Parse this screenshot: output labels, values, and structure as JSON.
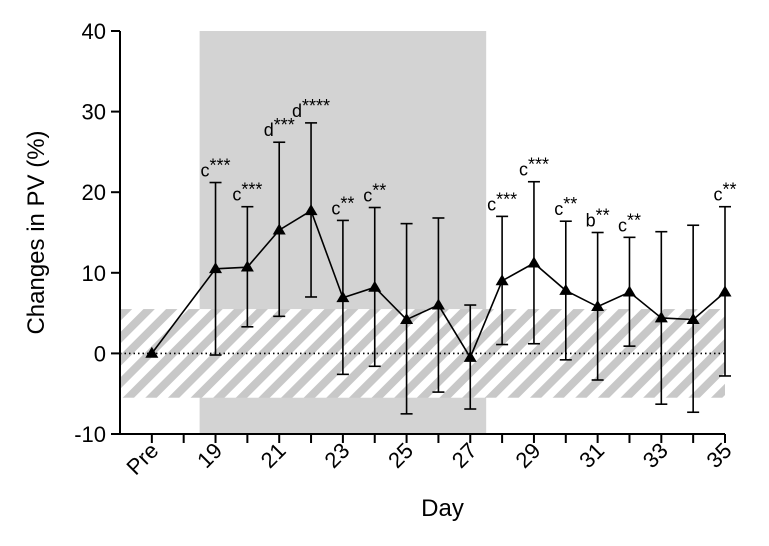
{
  "chart_data": {
    "type": "line",
    "xlabel": "Day",
    "ylabel": "Changes in PV (%)",
    "ylim": [
      -10,
      40
    ],
    "yticks": [
      -10,
      0,
      10,
      20,
      30,
      40
    ],
    "x": [
      "Pre",
      "18",
      "19",
      "20",
      "21",
      "22",
      "23",
      "24",
      "25",
      "26",
      "27",
      "28",
      "29",
      "30",
      "31",
      "32",
      "33",
      "34",
      "35"
    ],
    "x_tick_labels": [
      "Pre",
      "19",
      "21",
      "23",
      "25",
      "27",
      "29",
      "31",
      "33",
      "35"
    ],
    "series": [
      {
        "values": [
          0,
          null,
          10.5,
          10.7,
          15.3,
          17.7,
          6.9,
          8.2,
          4.2,
          6.0,
          -0.5,
          9.0,
          11.2,
          7.8,
          5.8,
          7.6,
          4.4,
          4.2,
          7.6
        ],
        "err_low": [
          null,
          null,
          -0.2,
          3.3,
          4.6,
          7.0,
          -2.6,
          -1.6,
          -7.5,
          -4.8,
          -6.9,
          1.1,
          1.2,
          -0.8,
          -3.3,
          0.9,
          -6.3,
          -7.3,
          -2.8
        ],
        "err_high": [
          null,
          null,
          21.2,
          18.2,
          26.2,
          28.6,
          16.5,
          18.1,
          16.1,
          16.8,
          6.0,
          17.0,
          21.3,
          16.4,
          15.0,
          14.4,
          15.1,
          15.9,
          18.2
        ],
        "annotations": [
          "",
          "",
          "c***",
          "c***",
          "d***",
          "d****",
          "c**",
          "c**",
          "",
          "",
          "",
          "c***",
          "c***",
          "c**",
          "b**",
          "c**",
          "",
          "",
          "c**"
        ],
        "color": "#000000",
        "marker": "triangle"
      }
    ],
    "shaded_region": {
      "x_start": 18.5,
      "x_end": 27.5,
      "color": "#d3d3d3"
    },
    "hatched_band": {
      "y_low": -5.5,
      "y_high": 5.5,
      "color": "#c8c8c8"
    },
    "reference_line": {
      "y": 0,
      "style": "dotted"
    },
    "grid": false,
    "legend": "none"
  }
}
